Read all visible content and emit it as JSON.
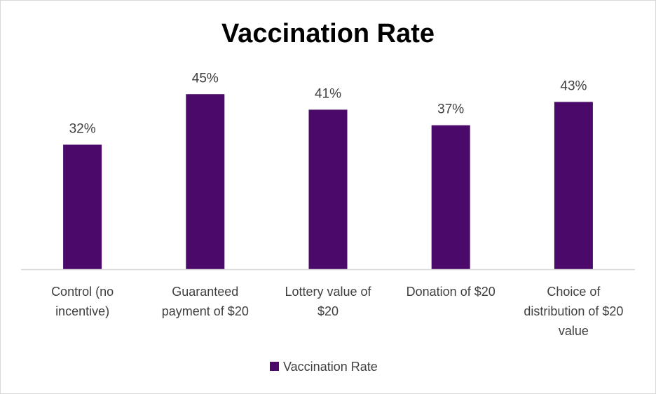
{
  "chart_data": {
    "type": "bar",
    "title": "Vaccination Rate",
    "categories": [
      [
        "Control (no",
        "incentive)"
      ],
      [
        "Guaranteed",
        "payment of $20"
      ],
      [
        "Lottery value of",
        "$20"
      ],
      [
        "Donation of $20"
      ],
      [
        "Choice of",
        "distribution of $20",
        "value"
      ]
    ],
    "series": [
      {
        "name": "Vaccination Rate",
        "values": [
          32,
          45,
          41,
          37,
          43
        ],
        "data_labels": [
          "32%",
          "45%",
          "41%",
          "37%",
          "43%"
        ],
        "color": "#4b0a6a"
      }
    ],
    "ylim": [
      0,
      50
    ],
    "grid": false,
    "legend_position": "bottom",
    "axis_line_color": "#d9d9d9"
  }
}
